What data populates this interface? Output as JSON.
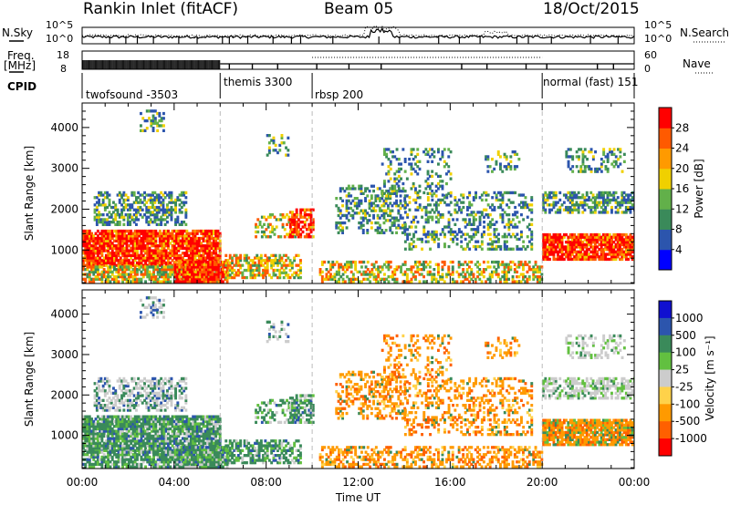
{
  "header": {
    "station": "Rankin Inlet (fitACF)",
    "beam": "Beam 05",
    "date": "18/Oct/2015"
  },
  "params": {
    "nsky_label": "N.Sky",
    "nsky_ticks": [
      "10^5",
      "10^0"
    ],
    "nsky_ticks_right": [
      "10^5",
      "10^0"
    ],
    "nsearch_label": "N.Search",
    "freq_label": "Freq.",
    "freq_unit": "[MHz]",
    "freq_ticks": [
      "18",
      "8"
    ],
    "nave_ticks": [
      "60",
      "0"
    ],
    "nave_label": "Nave",
    "cpid_label": "CPID"
  },
  "cpid_segments": [
    {
      "label": "twofsound -3503",
      "start": 0,
      "end": 6
    },
    {
      "label": "themis 3300",
      "start": 6,
      "end": 10
    },
    {
      "label": "rbsp 200",
      "start": 10,
      "end": 20
    },
    {
      "label": "normal (fast) 151",
      "start": 20,
      "end": 24
    }
  ],
  "colors": {
    "power_scale": [
      "#0000ff",
      "#2c55ad",
      "#3a8a5a",
      "#62b04a",
      "#f0d000",
      "#ff9a00",
      "#ff5a00",
      "#ff0000"
    ],
    "velocity_scale": [
      "#ff0000",
      "#ff6000",
      "#ff9a00",
      "#ffd24a",
      "#cccccc",
      "#62c040",
      "#3a8a5a",
      "#2c55ad",
      "#1010d0"
    ]
  },
  "chart_data": [
    {
      "type": "heatmap",
      "name": "power",
      "x_range": [
        0,
        24
      ],
      "y_range": [
        180,
        4600
      ],
      "ylabel": "Slant Range [km]",
      "yticks": [
        1000,
        2000,
        3000,
        4000
      ],
      "colorbar": {
        "label": "Power [dB]",
        "range": [
          0,
          32
        ],
        "ticks": [
          4,
          8,
          12,
          16,
          20,
          24,
          28
        ]
      },
      "grid": "vertical dashed lines at 06:00, 10:00, 20:00"
    },
    {
      "type": "heatmap",
      "name": "velocity",
      "x_range": [
        0,
        24
      ],
      "y_range": [
        180,
        4600
      ],
      "ylabel": "Slant Range [km]",
      "yticks": [
        1000,
        2000,
        3000,
        4000
      ],
      "xlabel": "Time UT",
      "xticks": [
        "00:00",
        "04:00",
        "08:00",
        "12:00",
        "16:00",
        "20:00",
        "00:00"
      ],
      "colorbar": {
        "label": "Velocity [m s⁻¹]",
        "ticks": [
          "1000",
          "500",
          "100",
          "25",
          "-25",
          "-100",
          "-500",
          "-1000"
        ]
      }
    }
  ]
}
